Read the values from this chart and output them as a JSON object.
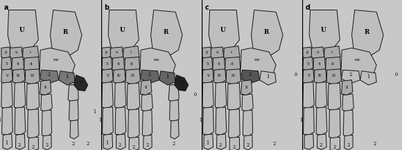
{
  "panel_labels": [
    "a",
    "b",
    "c",
    "d"
  ],
  "lc": "#bebebe",
  "lc2": "#aaaaaa",
  "dc": "#686868",
  "bc": "#2a2a2a",
  "ec": "#111111",
  "bg": "#c8c8c8",
  "lw": 0.7,
  "panel_configs": [
    {
      "c2": "#787878",
      "c1b": "#787878",
      "cI": "#282828",
      "show1": true,
      "showI": true
    },
    {
      "c2": "#656565",
      "c1b": "#656565",
      "cI": "#202020",
      "show1": true,
      "showI": true
    },
    {
      "c2": "#555555",
      "c1b": "#bebebe",
      "cI": "#bebebe",
      "show1": false,
      "showI": false
    },
    {
      "c2": "#bebebe",
      "c1b": "#bebebe",
      "cI": "#bebebe",
      "show1": false,
      "showI": false
    }
  ],
  "bottom_nums": [
    {
      "left": [
        "1",
        "2",
        "2",
        "2",
        "2"
      ],
      "right": [
        "1"
      ],
      "rside": "1"
    },
    {
      "left": [
        "1",
        "2",
        "2",
        "2",
        "2"
      ],
      "right": [],
      "rside": "0"
    },
    {
      "left": [
        "1",
        "2",
        "2",
        "2"
      ],
      "right": [
        "2"
      ],
      "rside": "0"
    },
    {
      "left": [
        "2",
        "2",
        "2"
      ],
      "right": [
        "2"
      ],
      "rside": "0"
    }
  ]
}
